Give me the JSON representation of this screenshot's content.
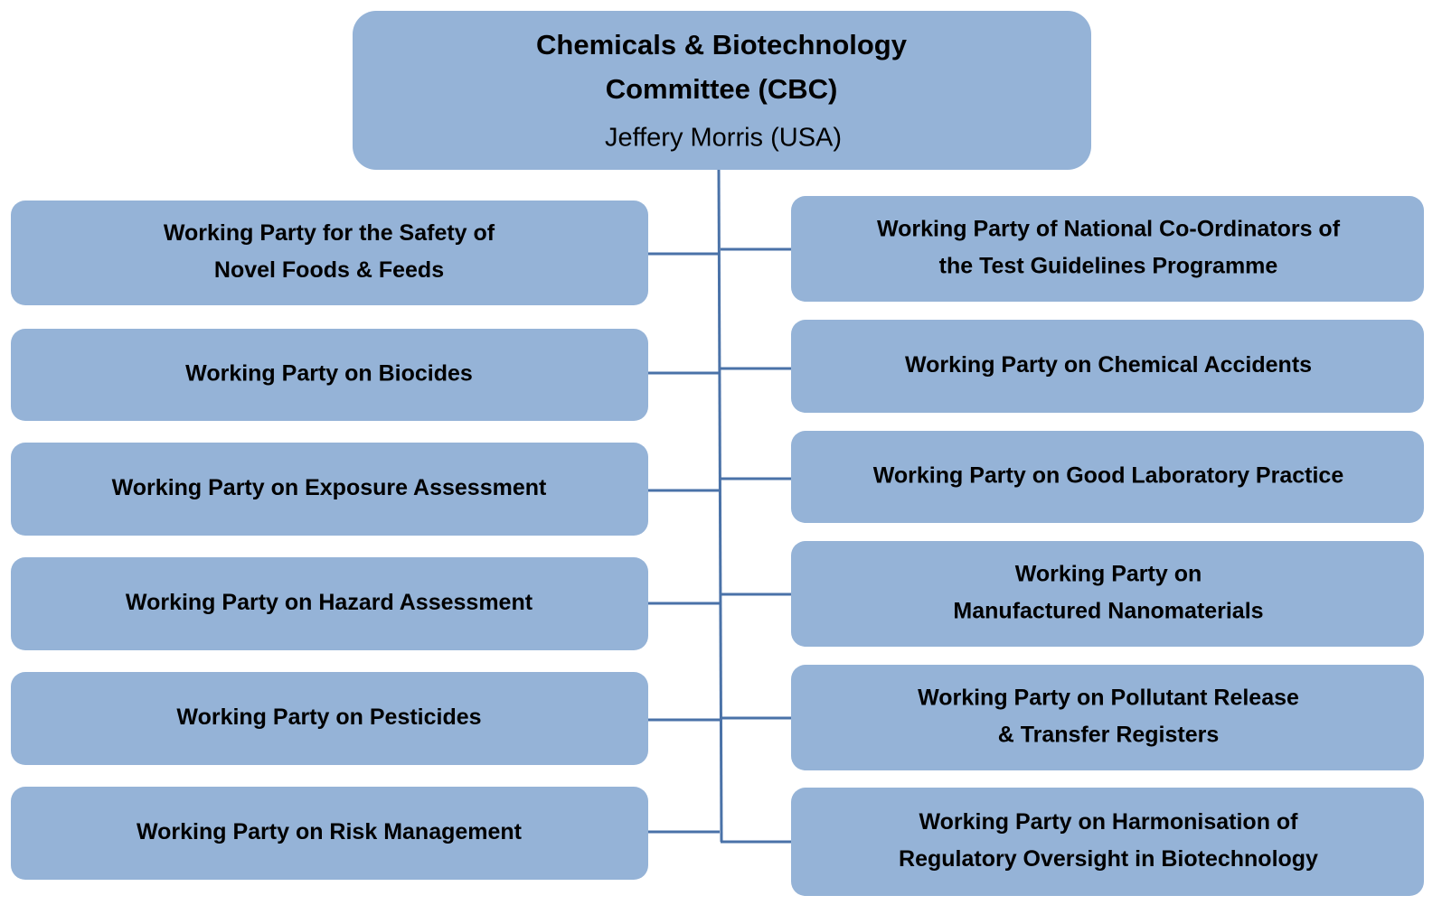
{
  "top": {
    "title": [
      "Chemicals & Biotechnology",
      "Committee (CBC)"
    ],
    "chair": "Jeffery Morris (USA)"
  },
  "left": [
    [
      "Working Party for the Safety of",
      "Novel Foods & Feeds"
    ],
    [
      "Working Party on Biocides"
    ],
    [
      "Working Party on Exposure Assessment"
    ],
    [
      "Working Party on Hazard Assessment"
    ],
    [
      "Working Party on Pesticides"
    ],
    [
      "Working Party on Risk Management"
    ]
  ],
  "right": [
    [
      "Working Party of National Co-Ordinators of",
      "the Test Guidelines Programme"
    ],
    [
      "Working Party on Chemical Accidents"
    ],
    [
      "Working Party on Good Laboratory Practice"
    ],
    [
      "Working Party on",
      "Manufactured Nanomaterials"
    ],
    [
      "Working Party on Pollutant Release",
      "& Transfer Registers"
    ],
    [
      "Working Party on Harmonisation of",
      "Regulatory Oversight in Biotechnology"
    ]
  ]
}
